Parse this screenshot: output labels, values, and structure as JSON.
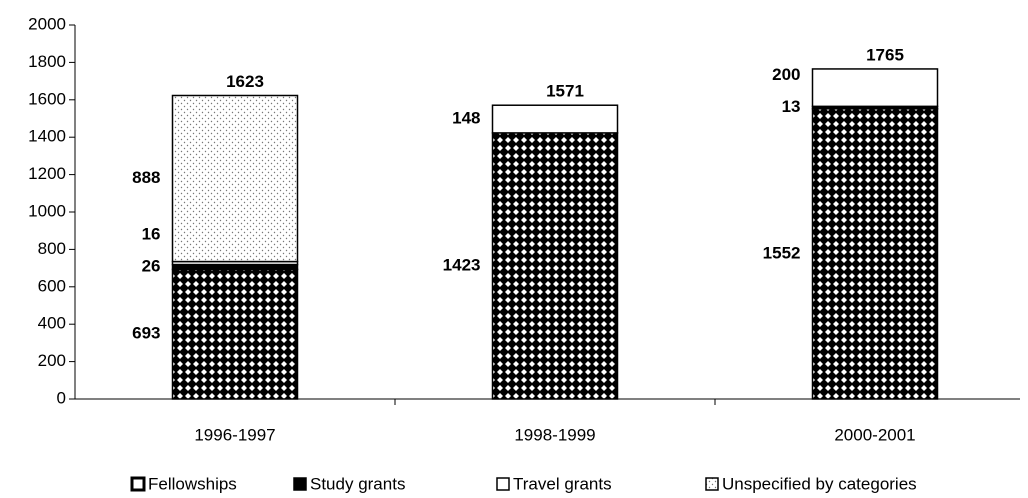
{
  "chart_data": {
    "type": "stacked_bar",
    "categories": [
      "1996-1997",
      "1998-1999",
      "2000-2001"
    ],
    "series": [
      {
        "name": "Fellowships",
        "color": "#000000",
        "pattern": "diamond",
        "values": [
          693,
          1423,
          1552
        ]
      },
      {
        "name": "Study grants",
        "color": "#000000",
        "pattern": "solid",
        "values": [
          26,
          null,
          13
        ]
      },
      {
        "name": "Travel grants",
        "color": "#ffffff",
        "pattern": "solid",
        "values": [
          16,
          148,
          200
        ]
      },
      {
        "name": "Unspecified by categories",
        "color": "#ffffff",
        "pattern": "dots",
        "values": [
          888,
          null,
          null
        ]
      }
    ],
    "totals": [
      1623,
      1571,
      1765
    ],
    "ylim": [
      0,
      2000
    ],
    "yticks": [
      0,
      200,
      400,
      600,
      800,
      1000,
      1200,
      1400,
      1600,
      1800,
      2000
    ],
    "legend": "bottom"
  }
}
